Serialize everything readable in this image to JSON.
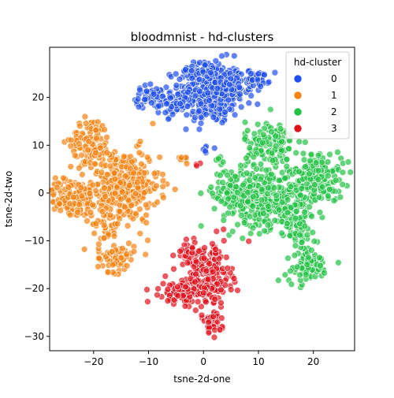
{
  "chart_data": {
    "type": "scatter",
    "title": "bloodmnist - hd-clusters",
    "xlabel": "tsne-2d-one",
    "ylabel": "tsne-2d-two",
    "xlim": [
      -28,
      27.5
    ],
    "ylim": [
      -33,
      30.5
    ],
    "xticks": [
      -20,
      -10,
      0,
      10,
      20
    ],
    "yticks": [
      -30,
      -20,
      -10,
      0,
      10,
      20
    ],
    "grid": false,
    "legend": {
      "title": "hd-cluster",
      "placement": "top-right"
    },
    "series": [
      {
        "name": "0",
        "color": "#1f4ff0",
        "clusters": [
          {
            "cx": 1.5,
            "cy": 21.0,
            "sx": 3.0,
            "sy": 3.3,
            "n": 330
          },
          {
            "cx": -9.5,
            "cy": 20.0,
            "sx": 1.4,
            "sy": 1.1,
            "n": 60
          },
          {
            "cx": -5.0,
            "cy": 18.5,
            "sx": 1.5,
            "sy": 1.2,
            "n": 50
          },
          {
            "cx": 5.0,
            "cy": 22.0,
            "sx": 1.8,
            "sy": 1.5,
            "n": 70
          },
          {
            "cx": 10.0,
            "cy": 24.0,
            "sx": 1.0,
            "sy": 0.9,
            "n": 40
          },
          {
            "cx": -1.0,
            "cy": 25.5,
            "sx": 1.6,
            "sy": 0.9,
            "n": 45
          },
          {
            "cx": 0.5,
            "cy": 9.5,
            "sx": 0.5,
            "sy": 0.7,
            "n": 6
          }
        ]
      },
      {
        "name": "1",
        "color": "#f5820f",
        "clusters": [
          {
            "cx": -14.5,
            "cy": 1.5,
            "sx": 3.2,
            "sy": 3.8,
            "n": 330
          },
          {
            "cx": -24.0,
            "cy": -1.0,
            "sx": 2.5,
            "sy": 2.0,
            "n": 160
          },
          {
            "cx": -20.5,
            "cy": 11.0,
            "sx": 1.8,
            "sy": 2.3,
            "n": 90
          },
          {
            "cx": -16.0,
            "cy": -13.5,
            "sx": 1.7,
            "sy": 1.5,
            "n": 70
          },
          {
            "cx": -17.5,
            "cy": -6.5,
            "sx": 1.3,
            "sy": 2.5,
            "n": 40
          },
          {
            "cx": -3.5,
            "cy": 7.2,
            "sx": 0.6,
            "sy": 0.4,
            "n": 8
          }
        ]
      },
      {
        "name": "2",
        "color": "#22c244",
        "clusters": [
          {
            "cx": 12.0,
            "cy": -1.0,
            "sx": 4.2,
            "sy": 3.2,
            "n": 380
          },
          {
            "cx": 5.5,
            "cy": 0.5,
            "sx": 2.0,
            "sy": 2.2,
            "n": 100
          },
          {
            "cx": 12.0,
            "cy": 10.0,
            "sx": 2.2,
            "sy": 2.6,
            "n": 130
          },
          {
            "cx": 21.0,
            "cy": 3.5,
            "sx": 2.2,
            "sy": 2.6,
            "n": 150
          },
          {
            "cx": 19.0,
            "cy": -15.5,
            "sx": 2.0,
            "sy": 1.6,
            "n": 90
          },
          {
            "cx": 17.5,
            "cy": -7.5,
            "sx": 1.4,
            "sy": 2.3,
            "n": 55
          },
          {
            "cx": 3.0,
            "cy": 7.3,
            "sx": 0.6,
            "sy": 0.4,
            "n": 6
          }
        ]
      },
      {
        "name": "3",
        "color": "#e3101b",
        "clusters": [
          {
            "cx": 1.0,
            "cy": -17.5,
            "sx": 2.0,
            "sy": 3.4,
            "n": 200
          },
          {
            "cx": -3.5,
            "cy": -20.5,
            "sx": 2.2,
            "sy": 1.3,
            "n": 110
          },
          {
            "cx": -2.5,
            "cy": -12.5,
            "sx": 1.2,
            "sy": 1.4,
            "n": 40
          },
          {
            "cx": 1.5,
            "cy": -27.5,
            "sx": 0.9,
            "sy": 1.1,
            "n": 35
          },
          {
            "cx": -1.0,
            "cy": 6.0,
            "sx": 0.3,
            "sy": 0.4,
            "n": 3
          }
        ]
      }
    ]
  }
}
